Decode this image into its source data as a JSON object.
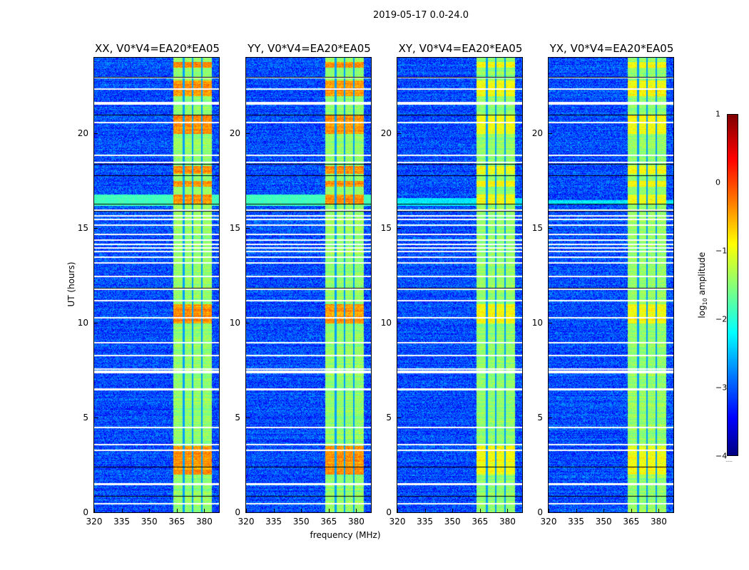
{
  "chart_data": {
    "type": "heatmap",
    "title": "2019-05-17 0.0-24.0",
    "xlabel": "frequency (MHz)",
    "ylabel": "UT (hours)",
    "xlim": [
      320,
      388
    ],
    "ylim": [
      0,
      24
    ],
    "xticks": [
      "320",
      "335",
      "350",
      "365",
      "380"
    ],
    "xtick_values": [
      320,
      335,
      350,
      365,
      380
    ],
    "yticks": [
      "0",
      "5",
      "10",
      "15",
      "20"
    ],
    "ytick_values": [
      0,
      5,
      10,
      15,
      20
    ],
    "panels": [
      {
        "title": "XX, V0*V4=EA20*EA05",
        "low_band_hours": [
          16.2,
          16.8
        ]
      },
      {
        "title": "YY, V0*V4=EA20*EA05",
        "low_band_hours": [
          16.2,
          16.8
        ]
      },
      {
        "title": "XY, V0*V4=EA20*EA05",
        "low_band_hours": [
          16.2,
          16.6
        ]
      },
      {
        "title": "YX, V0*V4=EA20*EA05",
        "low_band_hours": [
          16.3,
          16.5
        ]
      }
    ],
    "background_log_amplitude": -3,
    "band_mhz": [
      363,
      384
    ],
    "band_log_amplitude": -1.4,
    "band_gaps_mhz": [
      368.5,
      373.5,
      378.5
    ],
    "hot_hours": [
      [
        16.3,
        16.8
      ],
      [
        17.2,
        17.5
      ],
      [
        17.9,
        18.3
      ],
      [
        20.0,
        21.0
      ],
      [
        22.0,
        22.8
      ],
      [
        2.0,
        3.5
      ],
      [
        10.0,
        11.0
      ],
      [
        23.5,
        23.8
      ]
    ],
    "flagged_hours": [
      0.5,
      1.5,
      1.55,
      6.5,
      6.55,
      7.4,
      7.5,
      7.6,
      8.3,
      9.0,
      10.3,
      11.2,
      11.8,
      12.5,
      13.2,
      13.5,
      13.8,
      14.0,
      14.2,
      14.4,
      14.7,
      15.2,
      15.5,
      15.7,
      16.0,
      18.5,
      18.9,
      20.6,
      21.6,
      21.65,
      22.4,
      23.0,
      4.5,
      3.3,
      3.6
    ],
    "black_hours": [
      0.85,
      2.4,
      16.3,
      17.8,
      18.4,
      21.0,
      23.0,
      15.9,
      11.85
    ],
    "colorbar": {
      "label": "log10 amplitude",
      "label_main": "log",
      "label_sub": "10",
      "label_rest": " amplitude",
      "range": [
        -4,
        1
      ],
      "ticks": [
        "1",
        "0",
        "−1",
        "−2",
        "−3",
        "−4"
      ],
      "tick_values": [
        1,
        0,
        -1,
        -2,
        -3,
        -4
      ],
      "colormap": "jet"
    }
  }
}
